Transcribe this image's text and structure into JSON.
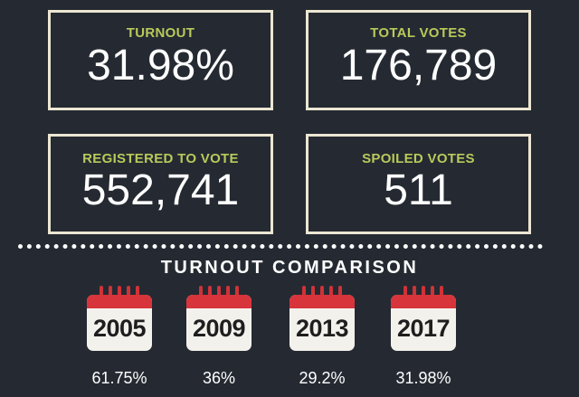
{
  "stats": {
    "turnout": {
      "label": "TURNOUT",
      "value": "31.98%"
    },
    "total_votes": {
      "label": "TOTAL VOTES",
      "value": "176,789"
    },
    "registered": {
      "label": "REGISTERED TO VOTE",
      "value": "552,741"
    },
    "spoiled": {
      "label": "SPOILED VOTES",
      "value": "511"
    }
  },
  "comparison": {
    "title": "TURNOUT COMPARISON",
    "years": [
      {
        "year": "2005",
        "turnout": "61.75%"
      },
      {
        "year": "2009",
        "turnout": "36%"
      },
      {
        "year": "2013",
        "turnout": "29.2%"
      },
      {
        "year": "2017",
        "turnout": "31.98%"
      }
    ]
  },
  "colors": {
    "background": "#252a32",
    "label_accent": "#b9c95a",
    "box_border": "#ece6d2",
    "calendar_red": "#d8343b"
  },
  "icons": [
    "calendar-icon"
  ]
}
